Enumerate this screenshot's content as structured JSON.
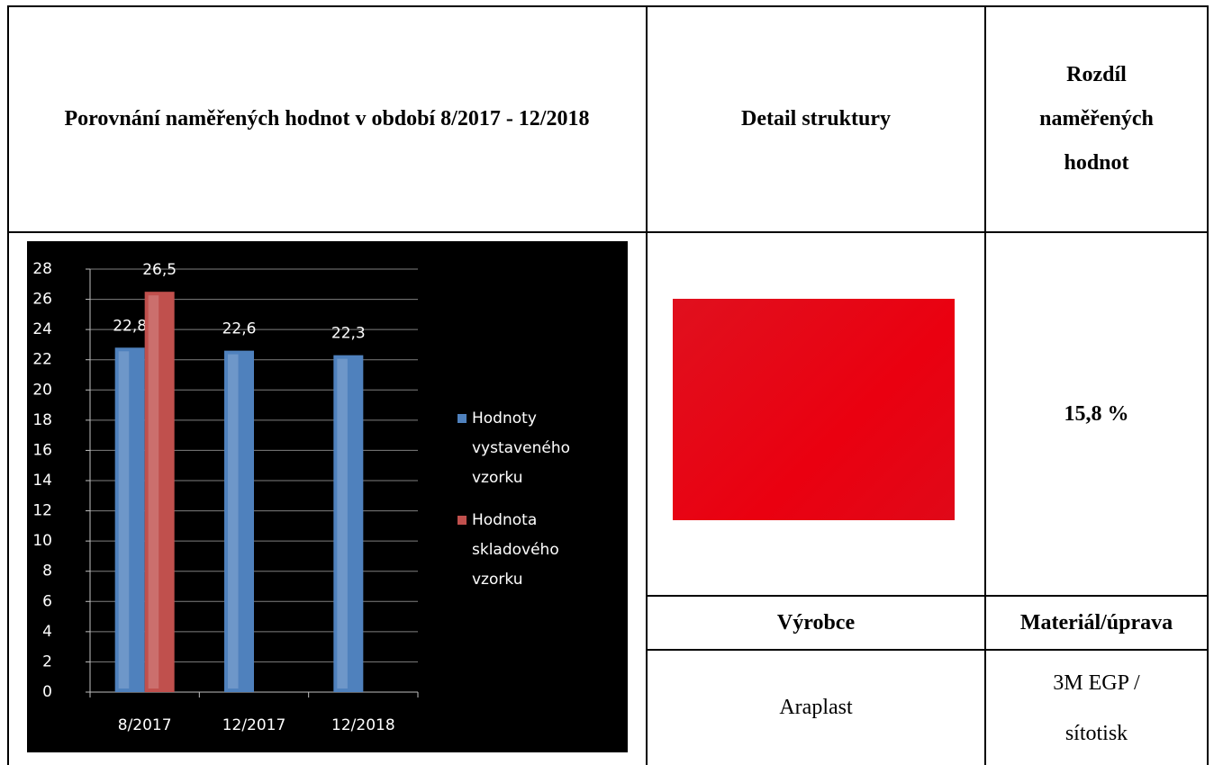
{
  "table": {
    "header": [
      "Porovnání naměřených hodnot v období 8/2017 - 12/2018",
      "Detail struktury",
      "Rozdíl naměřených hodnot"
    ],
    "difference": "15,8 %",
    "labels": [
      "Výrobce",
      "Materiál/úprava"
    ],
    "values": [
      "Araplast",
      "3M EGP / sítotisk"
    ]
  },
  "chart_data": {
    "type": "bar",
    "categories": [
      "8/2017",
      "12/2017",
      "12/2018"
    ],
    "series": [
      {
        "name": "Hodnoty vystaveného vzorku",
        "color": "#4f81bd",
        "values": [
          22.8,
          22.6,
          22.3
        ],
        "value_labels": [
          "22,8",
          "22,6",
          "22,3"
        ]
      },
      {
        "name": "Hodnota skladového vzorku",
        "color": "#c0504d",
        "values": [
          26.5,
          null,
          null
        ],
        "value_labels": [
          "26,5",
          null,
          null
        ]
      }
    ],
    "ylim": [
      0,
      28
    ],
    "yticks": [
      0,
      2,
      4,
      6,
      8,
      10,
      12,
      14,
      16,
      18,
      20,
      22,
      24,
      26,
      28
    ],
    "grid": true,
    "legend": "right"
  }
}
